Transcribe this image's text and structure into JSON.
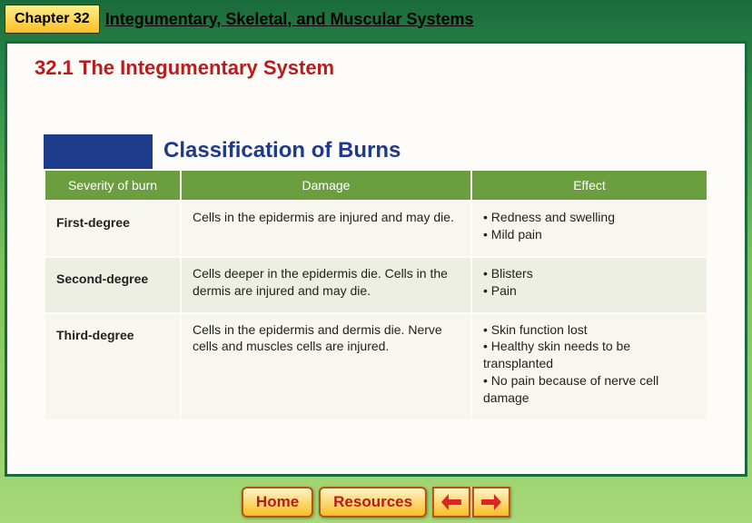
{
  "header": {
    "chapter_badge": "Chapter 32",
    "chapter_title": "Integumentary, Skeletal, and Muscular Systems"
  },
  "section": {
    "title": "32.1 The Integumentary System"
  },
  "table": {
    "title": "Classification of Burns",
    "columns": [
      "Severity of burn",
      "Damage",
      "Effect"
    ],
    "header_bg": "#6b9e3f",
    "header_fg": "#ffffff",
    "title_color": "#1e3a8a",
    "blue_block_color": "#1e3a8a",
    "row_colors": [
      "#f7f7f0",
      "#edefe2"
    ],
    "rows": [
      {
        "severity": "First-degree",
        "damage": "Cells in the epidermis are injured and may die.",
        "effects": [
          "Redness and swelling",
          "Mild pain"
        ]
      },
      {
        "severity": "Second-degree",
        "damage": "Cells deeper in the epidermis die. Cells in the dermis are injured and may die.",
        "effects": [
          "Blisters",
          "Pain"
        ]
      },
      {
        "severity": "Third-degree",
        "damage": "Cells in the epidermis and dermis die. Nerve cells and muscles cells are injured.",
        "effects": [
          "Skin function lost",
          "Healthy skin needs to be transplanted",
          "No pain because of nerve cell damage"
        ]
      }
    ]
  },
  "nav": {
    "home": "Home",
    "resources": "Resources"
  },
  "colors": {
    "section_title": "#b91c1c",
    "content_bg": "#fdfcf8",
    "page_gradient_top": "#1a6b3a",
    "page_gradient_bottom": "#a8d878",
    "nav_btn_text": "#b91c1c",
    "arrow_fill": "#dc2626"
  }
}
